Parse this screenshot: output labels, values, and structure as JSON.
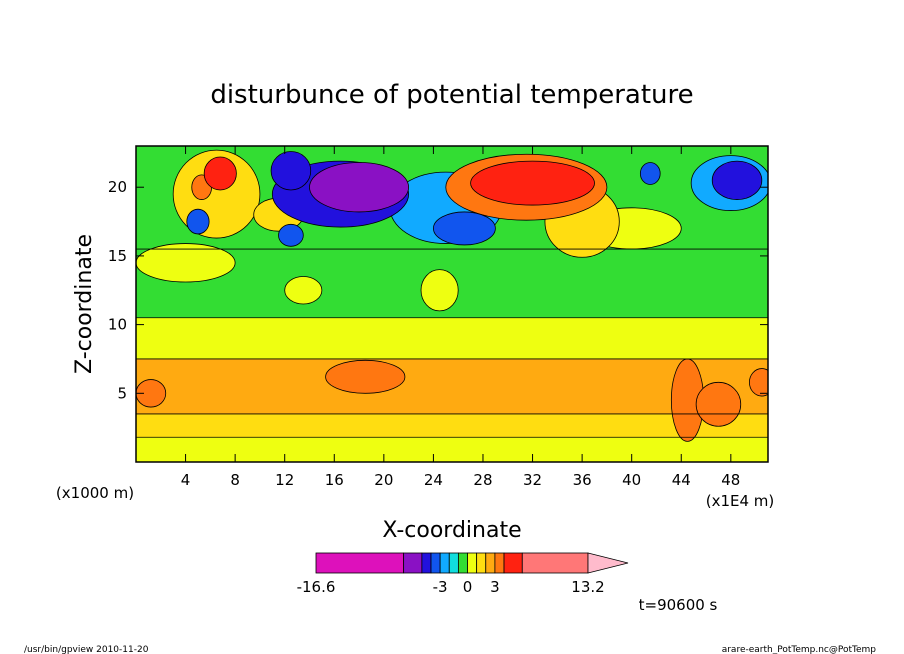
{
  "chart_data": {
    "type": "heatmap",
    "title": "disturbunce of potential temperature",
    "xlabel": "X-coordinate",
    "ylabel": "Z-coordinate",
    "x_unit_left": "(x1000 m)",
    "x_unit_right": "(x1E4 m)",
    "xlim": [
      0,
      51
    ],
    "ylim": [
      0,
      23
    ],
    "x_ticks": [
      4,
      8,
      12,
      16,
      20,
      24,
      28,
      32,
      36,
      40,
      44,
      48
    ],
    "y_ticks": [
      5,
      10,
      15,
      20
    ],
    "grid": false,
    "colorbar": {
      "min_label": "-16.6",
      "max_label": "13.2",
      "mid_labels": [
        "-3",
        "0",
        "3"
      ],
      "min": -16.6,
      "max": 13.2,
      "segments": [
        {
          "from": -16.6,
          "to": -7.0,
          "color": "#dd11bb"
        },
        {
          "from": -7.0,
          "to": -5.0,
          "color": "#8a11c4"
        },
        {
          "from": -5.0,
          "to": -4.0,
          "color": "#2211dd"
        },
        {
          "from": -4.0,
          "to": -3.0,
          "color": "#1155ee"
        },
        {
          "from": -3.0,
          "to": -2.0,
          "color": "#11aaff"
        },
        {
          "from": -2.0,
          "to": -1.0,
          "color": "#11dddd"
        },
        {
          "from": -1.0,
          "to": 0.0,
          "color": "#33dd33"
        },
        {
          "from": 0.0,
          "to": 1.0,
          "color": "#eeff11"
        },
        {
          "from": 1.0,
          "to": 2.0,
          "color": "#ffdd11"
        },
        {
          "from": 2.0,
          "to": 3.0,
          "color": "#ffaa11"
        },
        {
          "from": 3.0,
          "to": 4.0,
          "color": "#ff7711"
        },
        {
          "from": 4.0,
          "to": 6.0,
          "color": "#ff2211"
        },
        {
          "from": 6.0,
          "to": 13.2,
          "color": "#ff7777"
        }
      ],
      "extend_color": "#ffbbcc"
    },
    "bands": [
      {
        "z_from": 0,
        "z_to": 1.8,
        "value": 0.5
      },
      {
        "z_from": 1.8,
        "z_to": 3.5,
        "value": 1.5
      },
      {
        "z_from": 3.5,
        "z_to": 7.5,
        "value": 2.5
      },
      {
        "z_from": 7.5,
        "z_to": 10.5,
        "value": 0.5
      },
      {
        "z_from": 10.5,
        "z_to": 15.5,
        "value": -0.5
      },
      {
        "z_from": 15.5,
        "z_to": 23,
        "value": -0.5
      }
    ],
    "features": [
      {
        "x": 18,
        "z": 20,
        "value": -5.5,
        "rx": 4.0,
        "rz": 1.8
      },
      {
        "x": 16.5,
        "z": 19.5,
        "value": -4.5,
        "rx": 5.5,
        "rz": 2.4
      },
      {
        "x": 12.5,
        "z": 21.2,
        "value": -4.5,
        "rx": 1.6,
        "rz": 1.4
      },
      {
        "x": 26.5,
        "z": 17,
        "value": -4.0,
        "rx": 2.5,
        "rz": 1.2
      },
      {
        "x": 25,
        "z": 18.5,
        "value": -2.5,
        "rx": 4.5,
        "rz": 2.6
      },
      {
        "x": 32,
        "z": 20.3,
        "value": 5.0,
        "rx": 5.0,
        "rz": 1.6
      },
      {
        "x": 31.5,
        "z": 20,
        "value": 3.5,
        "rx": 6.5,
        "rz": 2.4
      },
      {
        "x": 6.8,
        "z": 21,
        "value": 4.5,
        "rx": 1.3,
        "rz": 1.2
      },
      {
        "x": 5.3,
        "z": 20,
        "value": 3.5,
        "rx": 0.8,
        "rz": 0.9
      },
      {
        "x": 6.5,
        "z": 19.5,
        "value": 1.5,
        "rx": 3.5,
        "rz": 3.2
      },
      {
        "x": 11.5,
        "z": 18,
        "value": 1.5,
        "rx": 2.0,
        "rz": 1.2
      },
      {
        "x": 48.5,
        "z": 20.5,
        "value": -4.5,
        "rx": 2.0,
        "rz": 1.4
      },
      {
        "x": 48,
        "z": 20.3,
        "value": -2.5,
        "rx": 3.2,
        "rz": 2.0
      },
      {
        "x": 41.5,
        "z": 21,
        "value": -3.5,
        "rx": 0.8,
        "rz": 0.8
      },
      {
        "x": 5,
        "z": 17.5,
        "value": -3.5,
        "rx": 0.9,
        "rz": 0.9
      },
      {
        "x": 12.5,
        "z": 16.5,
        "value": -3.5,
        "rx": 1.0,
        "rz": 0.8
      },
      {
        "x": 4,
        "z": 14.5,
        "value": 0.5,
        "rx": 4.0,
        "rz": 1.4
      },
      {
        "x": 36,
        "z": 17.5,
        "value": 1.5,
        "rx": 3.0,
        "rz": 2.6
      },
      {
        "x": 40,
        "z": 17,
        "value": 0.5,
        "rx": 4.0,
        "rz": 1.5
      },
      {
        "x": 1.2,
        "z": 5,
        "value": 3.5,
        "rx": 1.2,
        "rz": 1.0
      },
      {
        "x": 18.5,
        "z": 6.2,
        "value": 3.5,
        "rx": 3.2,
        "rz": 1.2
      },
      {
        "x": 44.5,
        "z": 4.5,
        "value": 3.5,
        "rx": 1.3,
        "rz": 3.0
      },
      {
        "x": 47,
        "z": 4.2,
        "value": 3.5,
        "rx": 1.8,
        "rz": 1.6
      },
      {
        "x": 50.5,
        "z": 5.8,
        "value": 3.5,
        "rx": 1.0,
        "rz": 1.0
      },
      {
        "x": 24.5,
        "z": 12.5,
        "value": 0.5,
        "rx": 1.5,
        "rz": 1.5
      },
      {
        "x": 13.5,
        "z": 12.5,
        "value": 0.5,
        "rx": 1.5,
        "rz": 1.0
      }
    ]
  },
  "annotations": {
    "time_label": "t=90600 s",
    "footer_left": "/usr/bin/gpview  2010-11-20",
    "footer_right": "arare-earth_PotTemp.nc@PotTemp"
  }
}
